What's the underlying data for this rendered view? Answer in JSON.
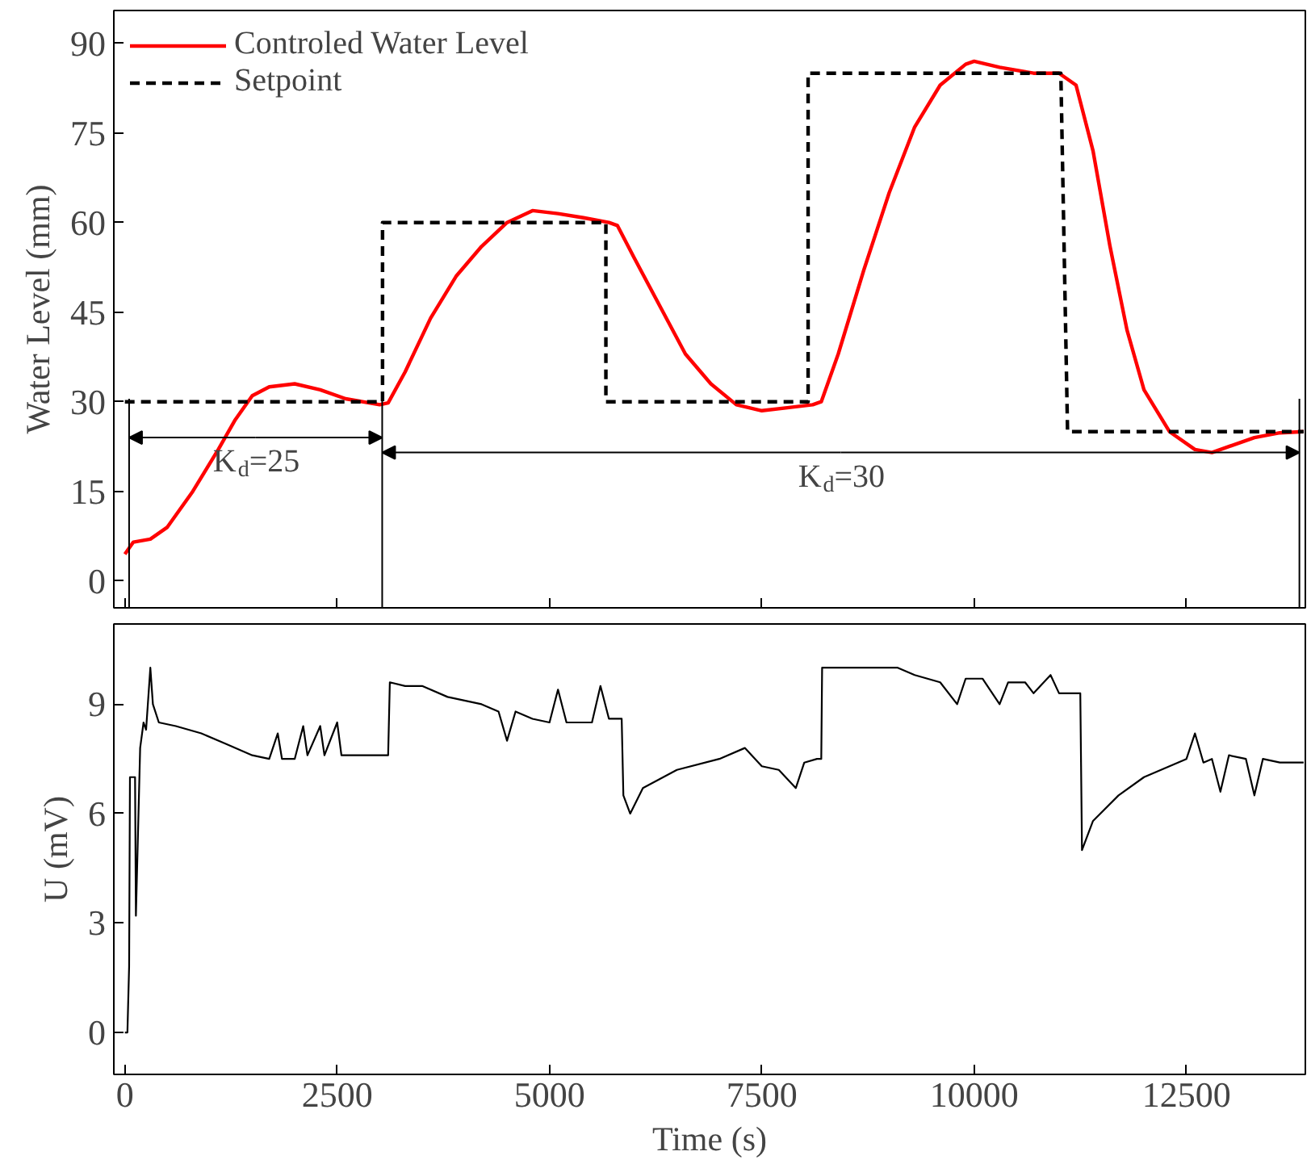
{
  "chart_data": [
    {
      "type": "line",
      "ylabel": "Water Level (mm)",
      "xlim": [
        -130,
        13900
      ],
      "ylim": [
        -4.5,
        95.5
      ],
      "xticks": [
        0,
        2500,
        5000,
        7500,
        10000,
        12500
      ],
      "yticks": [
        0,
        15,
        30,
        45,
        60,
        75,
        90
      ],
      "tick_labels": "y",
      "legend": "top left",
      "grid": false,
      "series": [
        {
          "name": "Controled Water Level",
          "color": "#ff0000",
          "line_style": "solid",
          "x": [
            0,
            100,
            300,
            500,
            800,
            1100,
            1300,
            1500,
            1700,
            2000,
            2300,
            2600,
            3000,
            3100,
            3300,
            3600,
            3900,
            4200,
            4500,
            4800,
            5100,
            5400,
            5700,
            5800,
            6000,
            6300,
            6600,
            6900,
            7200,
            7500,
            7800,
            8100,
            8200,
            8400,
            8700,
            9000,
            9300,
            9600,
            9900,
            10000,
            10300,
            10700,
            11000,
            11200,
            11400,
            11600,
            11800,
            12000,
            12300,
            12600,
            12800,
            13000,
            13300,
            13600,
            13880
          ],
          "values": [
            4.5,
            6.5,
            7,
            9,
            15,
            22,
            27,
            31,
            32.5,
            33,
            32,
            30.5,
            29.5,
            29.8,
            35,
            44,
            51,
            56,
            60,
            62,
            61.5,
            60.8,
            60,
            59.5,
            54,
            46,
            38,
            33,
            29.5,
            28.5,
            29,
            29.5,
            30,
            38,
            52,
            65,
            76,
            83,
            86.5,
            87,
            86,
            85,
            85,
            83,
            72,
            56,
            42,
            32,
            25,
            22,
            21.5,
            22.5,
            24,
            24.8,
            25
          ]
        },
        {
          "name": "Setpoint",
          "color": "#000000",
          "line_style": "dashed",
          "x": [
            0,
            3034,
            3034,
            5664,
            5664,
            8045,
            8045,
            11021,
            11100,
            13880
          ],
          "values": [
            30,
            30,
            60,
            60,
            30,
            30,
            85,
            85,
            25,
            25
          ]
        }
      ],
      "ref_lines": [
        {
          "axis": "x",
          "value": 50,
          "color": "#000000"
        },
        {
          "axis": "x",
          "value": 3030,
          "color": "#000000"
        },
        {
          "axis": "x",
          "value": 13830,
          "color": "#000000"
        }
      ],
      "annotations": [
        {
          "text": "K$_{d}$=25",
          "x": 3030,
          "y": 24
        },
        {
          "text": "K$_{d}$=30",
          "x": 13830,
          "y": 21.5
        }
      ]
    },
    {
      "type": "line",
      "xlabel": "Time (s)",
      "ylabel": "U (mV)",
      "xlim": [
        -130,
        13900
      ],
      "ylim": [
        -1.15,
        11.2
      ],
      "xticks": [
        0,
        2500,
        5000,
        7500,
        10000,
        12500
      ],
      "yticks": [
        0,
        3,
        6,
        9
      ],
      "grid": false,
      "series": [
        {
          "color": "#000000",
          "line_style": "solid",
          "x": [
            0,
            30,
            50,
            60,
            120,
            130,
            180,
            220,
            250,
            300,
            330,
            400,
            600,
            900,
            1200,
            1500,
            1700,
            1800,
            1850,
            2000,
            2100,
            2150,
            2300,
            2350,
            2500,
            2550,
            2700,
            3000,
            3100,
            3120,
            3300,
            3500,
            3800,
            4200,
            4400,
            4500,
            4600,
            4800,
            5000,
            5100,
            5200,
            5500,
            5600,
            5700,
            5850,
            5870,
            5950,
            6100,
            6500,
            7000,
            7300,
            7500,
            7700,
            7900,
            8000,
            8150,
            8200,
            8210,
            9000,
            9100,
            9300,
            9600,
            9800,
            9900,
            10100,
            10300,
            10400,
            10600,
            10700,
            10900,
            11000,
            11250,
            11270,
            11400,
            11700,
            12000,
            12300,
            12500,
            12600,
            12700,
            12800,
            12900,
            13000,
            13200,
            13300,
            13400,
            13600,
            13880
          ],
          "values": [
            0,
            0,
            1.8,
            7,
            7,
            3.2,
            7.8,
            8.5,
            8.3,
            10,
            9,
            8.5,
            8.4,
            8.2,
            7.9,
            7.6,
            7.5,
            8.2,
            7.5,
            7.5,
            8.4,
            7.6,
            8.4,
            7.6,
            8.5,
            7.6,
            7.6,
            7.6,
            7.6,
            9.6,
            9.5,
            9.5,
            9.2,
            9,
            8.8,
            8,
            8.8,
            8.6,
            8.5,
            9.4,
            8.5,
            8.5,
            9.5,
            8.6,
            8.6,
            6.5,
            6,
            6.7,
            7.2,
            7.5,
            7.8,
            7.3,
            7.2,
            6.7,
            7.4,
            7.5,
            7.5,
            10,
            10,
            10,
            9.8,
            9.6,
            9,
            9.7,
            9.7,
            9,
            9.6,
            9.6,
            9.3,
            9.8,
            9.3,
            9.3,
            5,
            5.8,
            6.5,
            7,
            7.3,
            7.5,
            8.2,
            7.4,
            7.5,
            6.6,
            7.6,
            7.5,
            6.5,
            7.5,
            7.4,
            7.4
          ]
        }
      ]
    }
  ]
}
